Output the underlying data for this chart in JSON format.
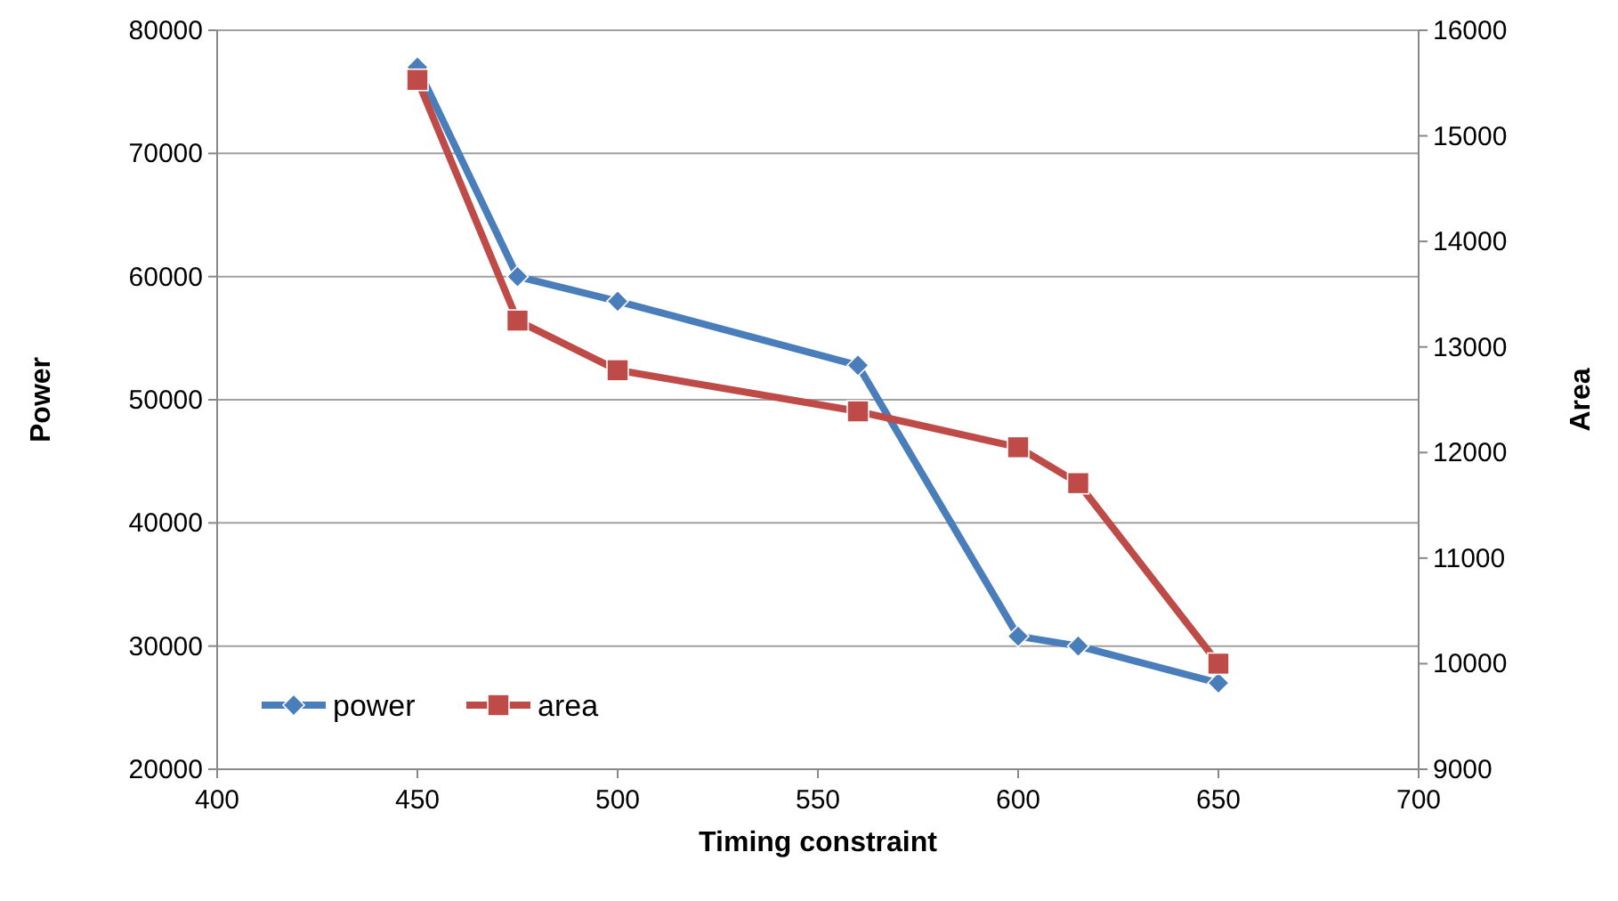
{
  "chart_data": {
    "type": "line",
    "xlabel": "Timing constraint",
    "ylabel": "Power",
    "y2label": "Area",
    "x": [
      450,
      475,
      500,
      560,
      600,
      615,
      650
    ],
    "series": [
      {
        "name": "power",
        "color": "#4a7ebb",
        "marker": "diamond",
        "values": [
          77000,
          60000,
          58000,
          52800,
          30800,
          30000,
          27000
        ]
      },
      {
        "name": "area",
        "color": "#be4b48",
        "marker": "square",
        "axis": "y2",
        "values": [
          15530,
          13250,
          12780,
          12390,
          12050,
          11710,
          10000
        ]
      }
    ],
    "xlim": [
      400,
      700
    ],
    "xticks": [
      400,
      450,
      500,
      550,
      600,
      650,
      700
    ],
    "ylim": [
      20000,
      80000
    ],
    "yticks": [
      20000,
      30000,
      40000,
      50000,
      60000,
      70000,
      80000
    ],
    "y2lim": [
      9000,
      16000
    ],
    "y2ticks": [
      9000,
      10000,
      11000,
      12000,
      13000,
      14000,
      15000,
      16000
    ],
    "grid": "y",
    "legend": "bottom left",
    "line_style": "solid"
  }
}
